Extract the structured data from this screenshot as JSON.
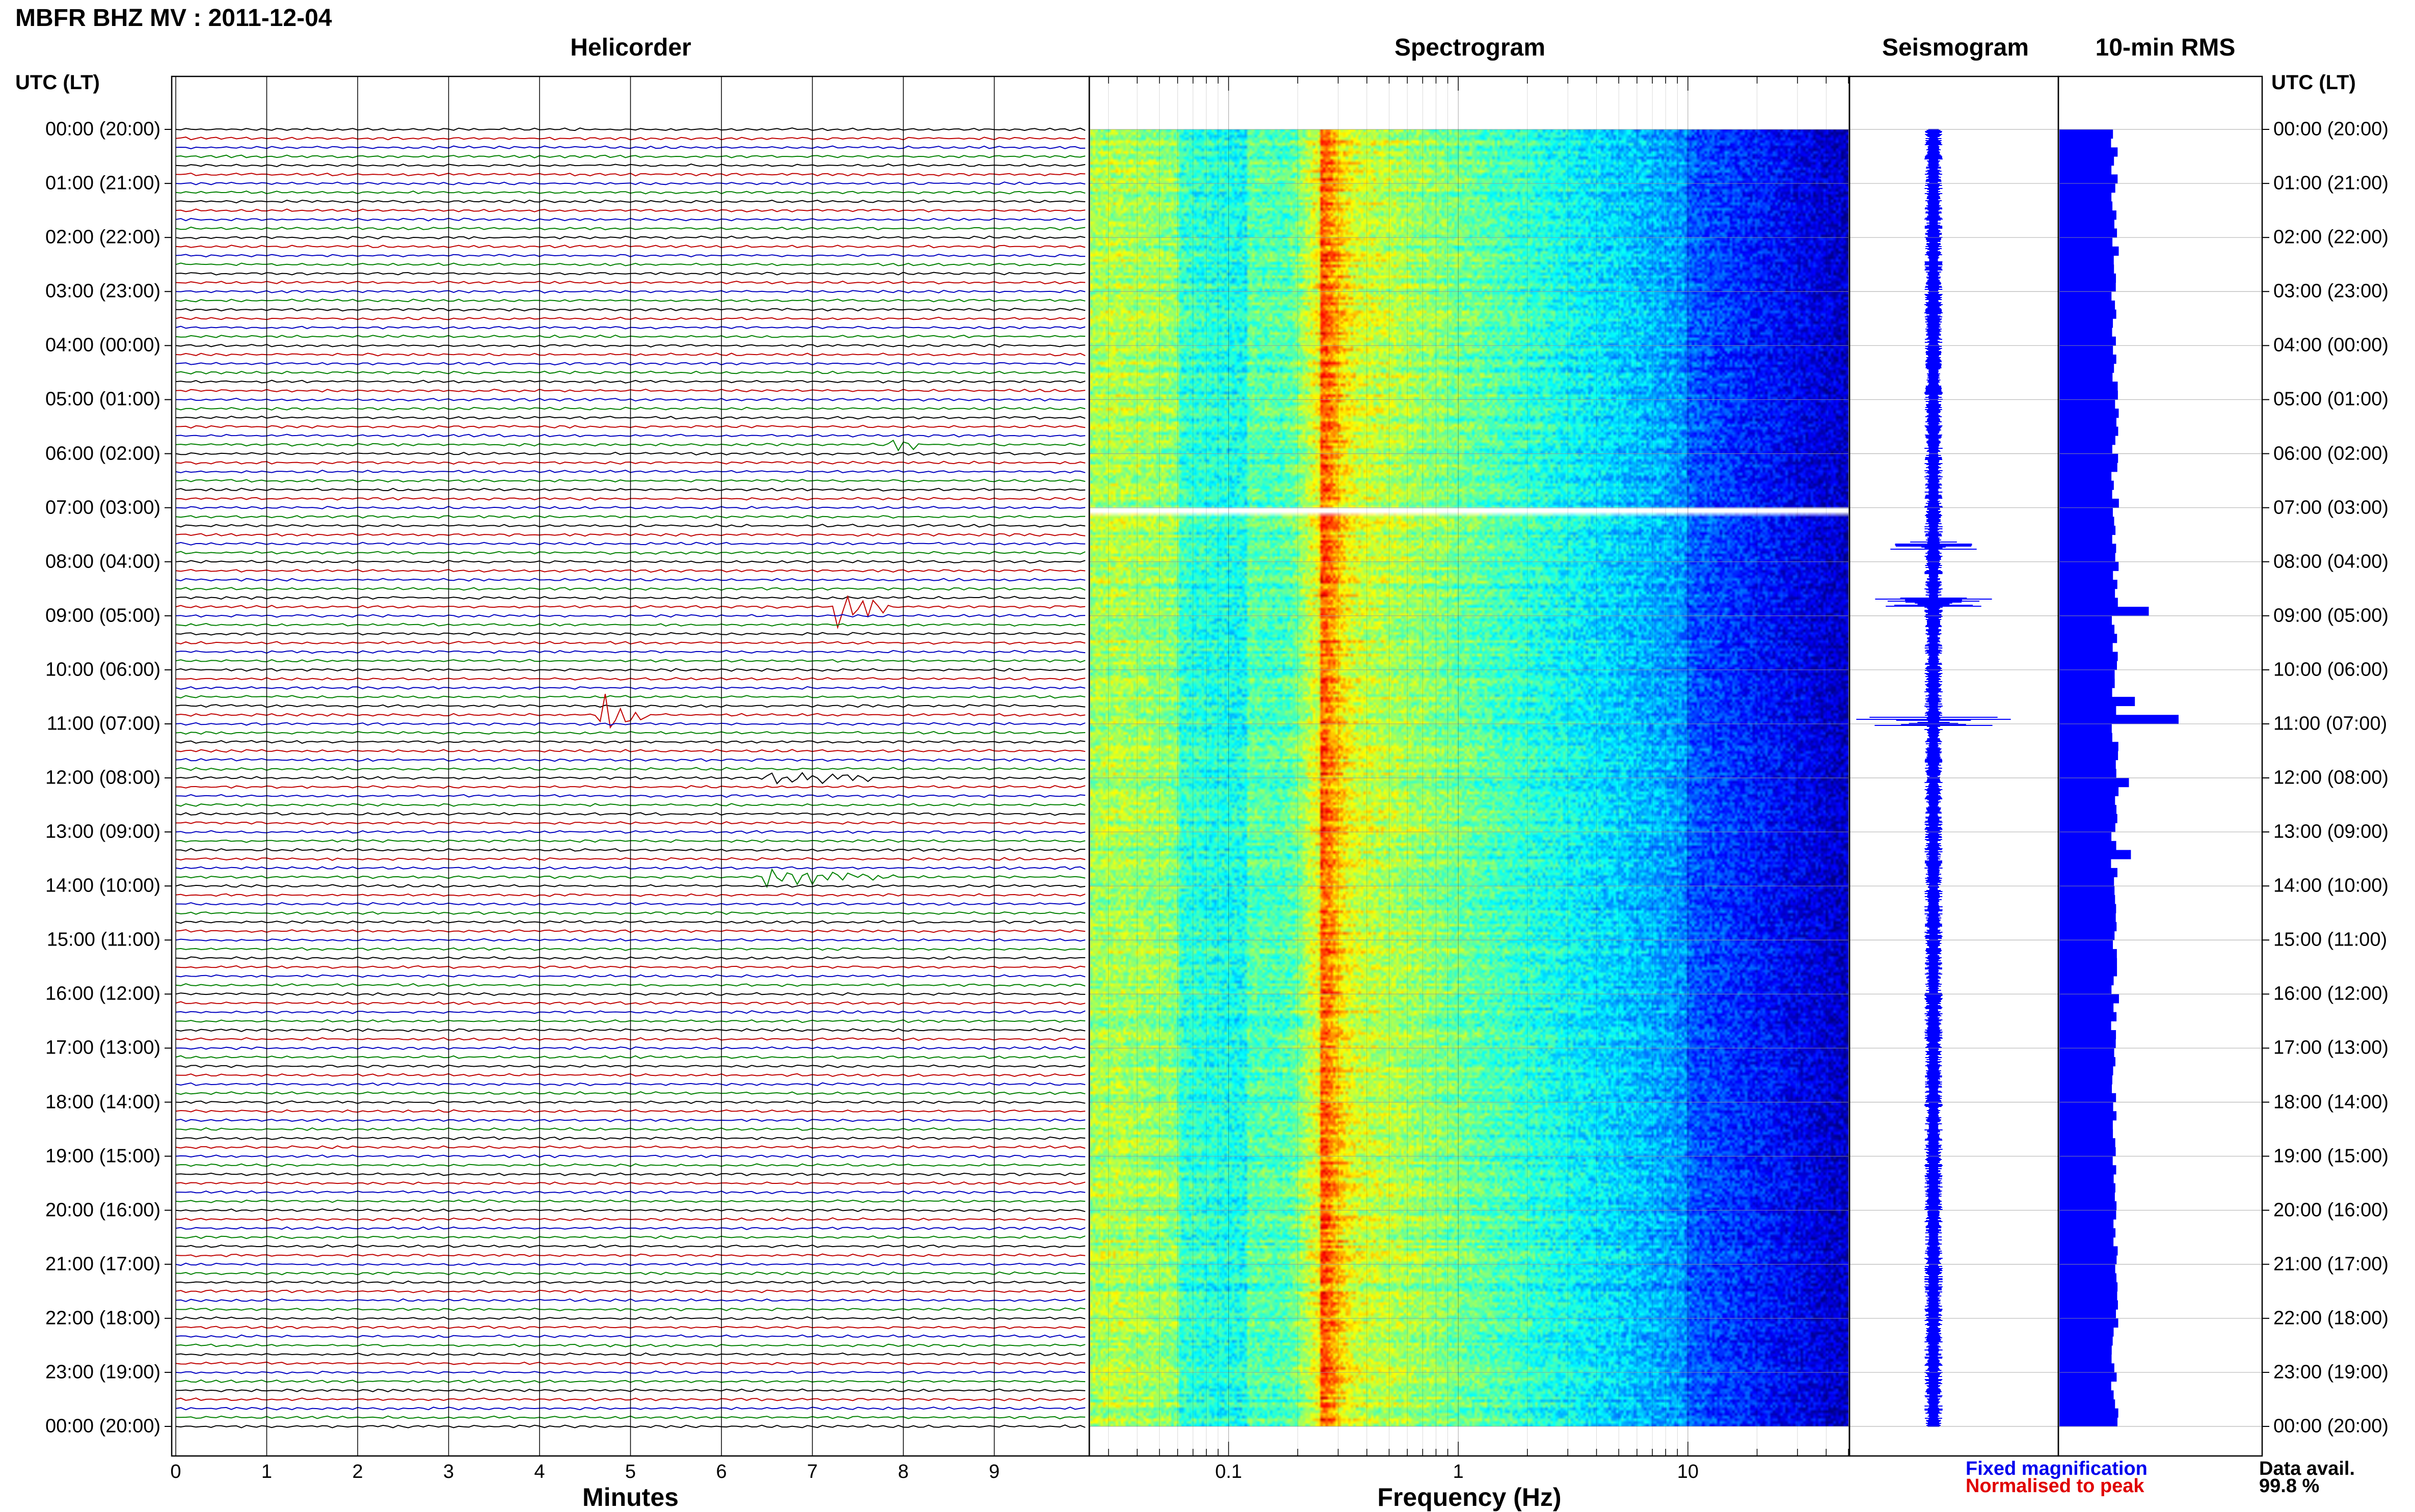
{
  "title": "MBFR BHZ MV : 2011-12-04",
  "panels": {
    "helicorder": "Helicorder",
    "spectrogram": "Spectrogram",
    "seismogram": "Seismogram",
    "rms": "10-min RMS"
  },
  "utc_header": "UTC (LT)",
  "time_labels": [
    "00:00 (20:00)",
    "01:00 (21:00)",
    "02:00 (22:00)",
    "03:00 (23:00)",
    "04:00 (00:00)",
    "05:00 (01:00)",
    "06:00 (02:00)",
    "07:00 (03:00)",
    "08:00 (04:00)",
    "09:00 (05:00)",
    "10:00 (06:00)",
    "11:00 (07:00)",
    "12:00 (08:00)",
    "13:00 (09:00)",
    "14:00 (10:00)",
    "15:00 (11:00)",
    "16:00 (12:00)",
    "17:00 (13:00)",
    "18:00 (14:00)",
    "19:00 (15:00)",
    "20:00 (16:00)",
    "21:00 (17:00)",
    "22:00 (18:00)",
    "23:00 (19:00)",
    "00:00 (20:00)"
  ],
  "colors": {
    "helicorder_traces": [
      "#000000",
      "#c00000",
      "#0000c0",
      "#008000"
    ],
    "rms_bar": "#0000ff",
    "seismogram": "#0000ff"
  },
  "chart_data": [
    {
      "type": "line",
      "name": "Helicorder",
      "xlabel": "Minutes",
      "xlim": [
        0,
        10
      ],
      "x_ticks": [
        "0",
        "1",
        "2",
        "3",
        "4",
        "5",
        "6",
        "7",
        "8",
        "9"
      ],
      "rows_per_hour": 6,
      "hours": 24,
      "events": [
        {
          "hour": 8.8,
          "minute": 7.3,
          "color": "#0000c0",
          "amp": 2.5,
          "dur": 0.6
        },
        {
          "hour": 10.9,
          "minute": 4.7,
          "color": "#0000c0",
          "amp": 3,
          "dur": 0.5
        },
        {
          "hour": 5.9,
          "minute": 7.9,
          "color": "#008000",
          "amp": 1.5,
          "dur": 0.3
        },
        {
          "hour": 13.8,
          "minute": 6.5,
          "color": "#0000c0",
          "amp": 1.2,
          "dur": 1.5
        },
        {
          "hour": 12.0,
          "minute": 6.5,
          "color": "#008000",
          "amp": 1,
          "dur": 1.5
        }
      ]
    },
    {
      "type": "heatmap",
      "name": "Spectrogram",
      "xlabel": "Frequency (Hz)",
      "x_scale": "log",
      "xlim": [
        0.025,
        50
      ],
      "x_ticks": [
        "0.1",
        "1",
        "10"
      ],
      "peak_frequency_hz": 0.25,
      "data_gap_hour": 7.0
    },
    {
      "type": "line",
      "name": "Seismogram",
      "spikes": [
        {
          "hour": 8.75,
          "amp": 0.6
        },
        {
          "hour": 10.95,
          "amp": 1.0
        },
        {
          "hour": 7.7,
          "amp": 0.4
        }
      ]
    },
    {
      "type": "bar",
      "name": "10-min RMS",
      "orientation": "horizontal",
      "bins_per_hour": 6,
      "baseline": 0.28,
      "peaks": [
        {
          "hour": 8.9,
          "value": 0.45
        },
        {
          "hour": 10.9,
          "value": 0.6
        },
        {
          "hour": 10.5,
          "value": 0.38
        },
        {
          "hour": 13.3,
          "value": 0.36
        },
        {
          "hour": 12.0,
          "value": 0.35
        }
      ]
    }
  ],
  "legend": {
    "fixed": "Fixed magnification",
    "normalised": "Normalised to peak"
  },
  "availability": {
    "label": "Data avail.",
    "value": "99.8 %"
  }
}
